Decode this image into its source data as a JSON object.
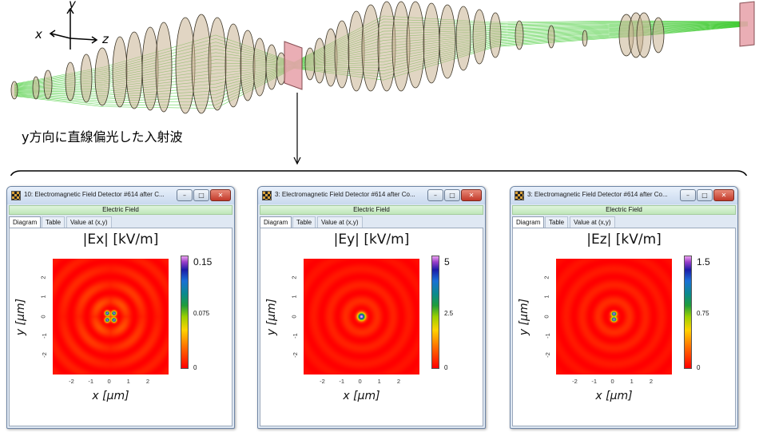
{
  "annotation": {
    "caption": "y方向に直線偏光した入射波",
    "axes": {
      "x": "x",
      "y": "y",
      "z": "z"
    }
  },
  "windows": [
    {
      "title": "10: Electromagnetic Field Detector #614 after C...",
      "band": "Electric Field",
      "tabs": [
        "Diagram",
        "Table",
        "Value at (x,y)"
      ],
      "plot_title": "|Ex| [kV/m]",
      "x_axis_label": "x [μm]",
      "y_axis_label": "y [μm]",
      "x_ticks": [
        "-2",
        "-1",
        "0",
        "1",
        "2"
      ],
      "y_ticks": [
        "2",
        "1",
        "0",
        "-1",
        "-2"
      ],
      "colorbar": {
        "max": "0.15",
        "mid": "0.075",
        "min": "0"
      },
      "pattern": "four-lobe"
    },
    {
      "title": "3: Electromagnetic Field Detector #614 after Co...",
      "band": "Electric Field",
      "tabs": [
        "Diagram",
        "Table",
        "Value at (x,y)"
      ],
      "plot_title": "|Ey| [kV/m]",
      "x_axis_label": "x [μm]",
      "y_axis_label": "y [μm]",
      "x_ticks": [
        "-2",
        "-1",
        "0",
        "1",
        "2"
      ],
      "y_ticks": [
        "2",
        "1",
        "0",
        "-1",
        "-2"
      ],
      "colorbar": {
        "max": "5",
        "mid": "2.5",
        "min": "0"
      },
      "pattern": "single-spot"
    },
    {
      "title": "3: Electromagnetic Field Detector #614 after Co...",
      "band": "Electric Field",
      "tabs": [
        "Diagram",
        "Table",
        "Value at (x,y)"
      ],
      "plot_title": "|Ez| [kV/m]",
      "x_axis_label": "x [μm]",
      "y_axis_label": "y [μm]",
      "x_ticks": [
        "-2",
        "-1",
        "0",
        "1",
        "2"
      ],
      "y_ticks": [
        "2",
        "1",
        "0",
        "-1",
        "-2"
      ],
      "colorbar": {
        "max": "1.5",
        "mid": "0.75",
        "min": "0"
      },
      "pattern": "two-lobe-vertical"
    }
  ],
  "colors": {
    "lens_fill": "#c8b392",
    "lens_stroke": "#3a3325",
    "ray": "#29c41a",
    "screen_fill": "#e8a6ad",
    "field_background": "#ff1a00"
  }
}
